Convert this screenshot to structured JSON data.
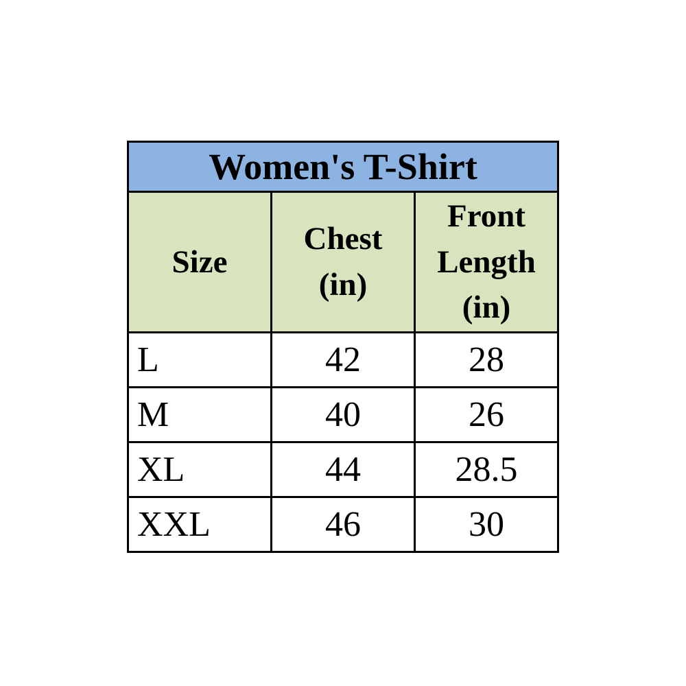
{
  "colors": {
    "title_bg": "#8db3e2",
    "header_bg": "#d7e4bd",
    "border": "#000000",
    "text": "#000000",
    "page_bg": "#ffffff"
  },
  "table": {
    "title": "Women's T-Shirt",
    "headers": {
      "size": "Size",
      "chest": "Chest\n(in)",
      "front_length": "Front\nLength\n(in)"
    },
    "rows": [
      {
        "size": "L",
        "chest": "42",
        "front_length": "28"
      },
      {
        "size": "M",
        "chest": "40",
        "front_length": "26"
      },
      {
        "size": "XL",
        "chest": "44",
        "front_length": "28.5"
      },
      {
        "size": "XXL",
        "chest": "46",
        "front_length": "30"
      }
    ]
  },
  "chart_data": {
    "type": "table",
    "title": "Women's T-Shirt",
    "columns": [
      "Size",
      "Chest (in)",
      "Front Length (in)"
    ],
    "rows": [
      [
        "L",
        42,
        28
      ],
      [
        "M",
        40,
        26
      ],
      [
        "XL",
        44,
        28.5
      ],
      [
        "XXL",
        46,
        30
      ]
    ]
  }
}
